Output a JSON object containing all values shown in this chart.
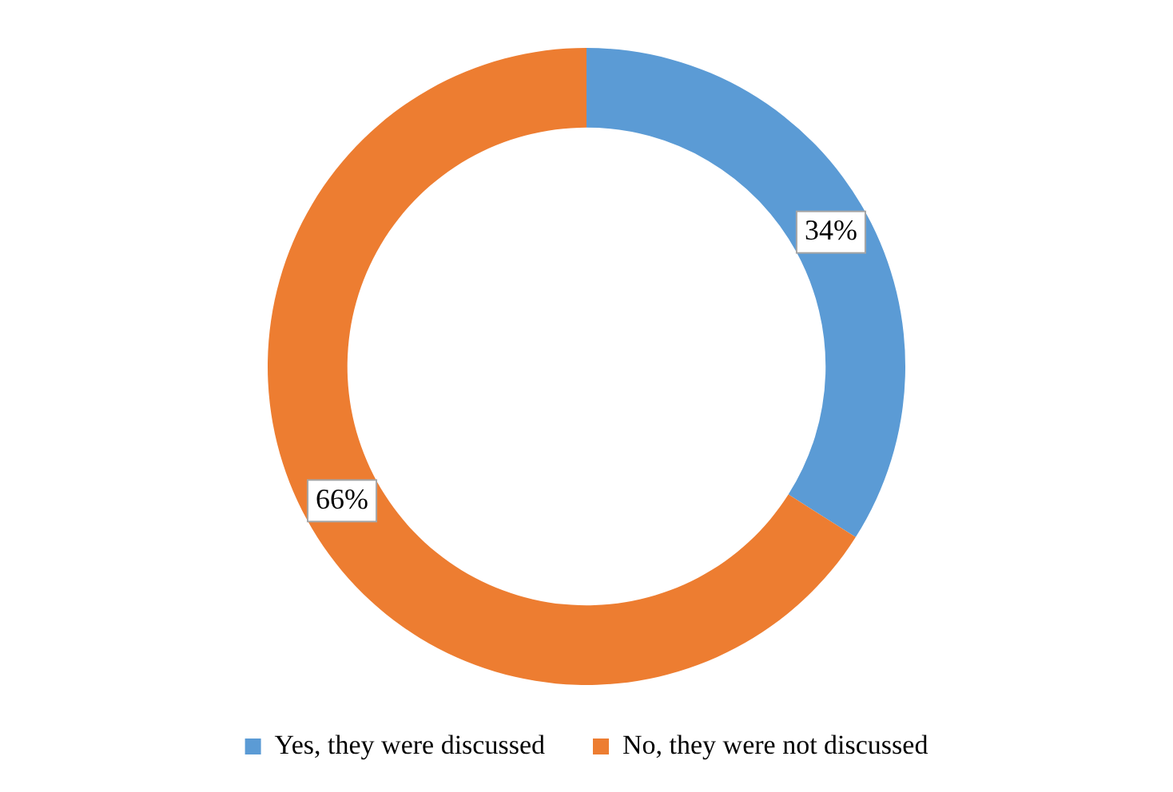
{
  "chart_data": {
    "type": "donut",
    "categories": [
      "Yes, they were discussed",
      "No, they were not discussed"
    ],
    "values": [
      34,
      66
    ],
    "colors": [
      "#5b9bd5",
      "#ed7d31"
    ],
    "value_labels": [
      "34%",
      "66%"
    ],
    "legend": "bottom"
  }
}
